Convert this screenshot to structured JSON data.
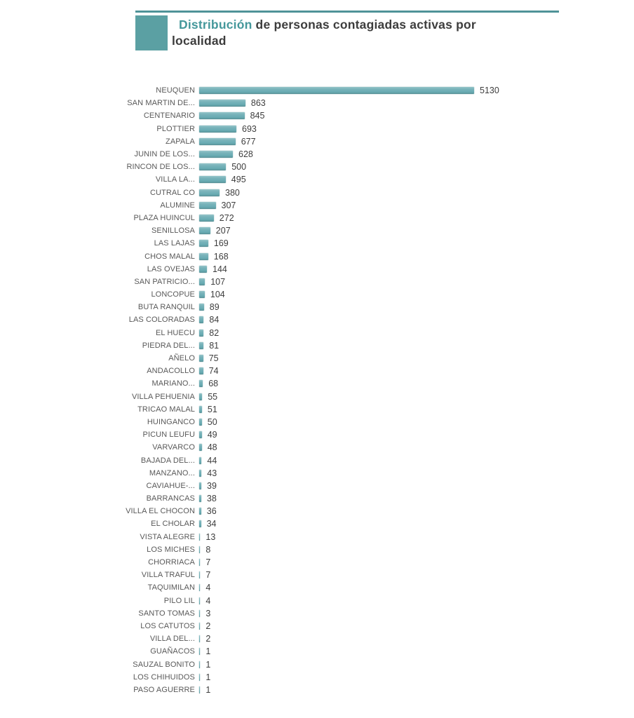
{
  "header": {
    "title_highlight": "Distribución",
    "title_rest": " de personas contagiadas activas por localidad",
    "accent_color": "#45989b",
    "rule_color": "#4f9398",
    "square_color": "#5ba0a3"
  },
  "chart_data": {
    "type": "bar",
    "orientation": "horizontal",
    "title": "Distribución de personas contagiadas activas por localidad",
    "xlabel": "",
    "ylabel": "",
    "grid": false,
    "legend_position": "none",
    "value_labels": true,
    "bar_color": "#6badb4",
    "bar_edge_color": "#51878e",
    "label_color": "#595959",
    "value_color": "#3d3d3d",
    "max_value": 5130,
    "categories": [
      "NEUQUEN",
      "SAN MARTIN DE...",
      "CENTENARIO",
      "PLOTTIER",
      "ZAPALA",
      "JUNIN DE LOS...",
      "RINCON DE LOS...",
      "VILLA LA...",
      "CUTRAL CO",
      "ALUMINE",
      "PLAZA HUINCUL",
      "SENILLOSA",
      "LAS LAJAS",
      "CHOS MALAL",
      "LAS OVEJAS",
      "SAN PATRICIO...",
      "LONCOPUE",
      "BUTA RANQUIL",
      "LAS COLORADAS",
      "EL HUECU",
      "PIEDRA DEL...",
      "AÑELO",
      "ANDACOLLO",
      "MARIANO...",
      "VILLA PEHUENIA",
      "TRICAO MALAL",
      "HUINGANCO",
      "PICUN LEUFU",
      "VARVARCO",
      "BAJADA DEL...",
      "MANZANO...",
      "CAVIAHUE-...",
      "BARRANCAS",
      "VILLA EL CHOCON",
      "EL CHOLAR",
      "VISTA ALEGRE",
      "LOS MICHES",
      "CHORRIACA",
      "VILLA TRAFUL",
      "TAQUIMILAN",
      "PILO LIL",
      "SANTO TOMAS",
      "LOS CATUTOS",
      "VILLA DEL...",
      "GUAÑACOS",
      "SAUZAL BONITO",
      "LOS CHIHUIDOS",
      "PASO AGUERRE"
    ],
    "values": [
      5130,
      863,
      845,
      693,
      677,
      628,
      500,
      495,
      380,
      307,
      272,
      207,
      169,
      168,
      144,
      107,
      104,
      89,
      84,
      82,
      81,
      75,
      74,
      68,
      55,
      51,
      50,
      49,
      48,
      44,
      43,
      39,
      38,
      36,
      34,
      13,
      8,
      7,
      7,
      4,
      4,
      3,
      2,
      2,
      1,
      1,
      1,
      1
    ]
  }
}
